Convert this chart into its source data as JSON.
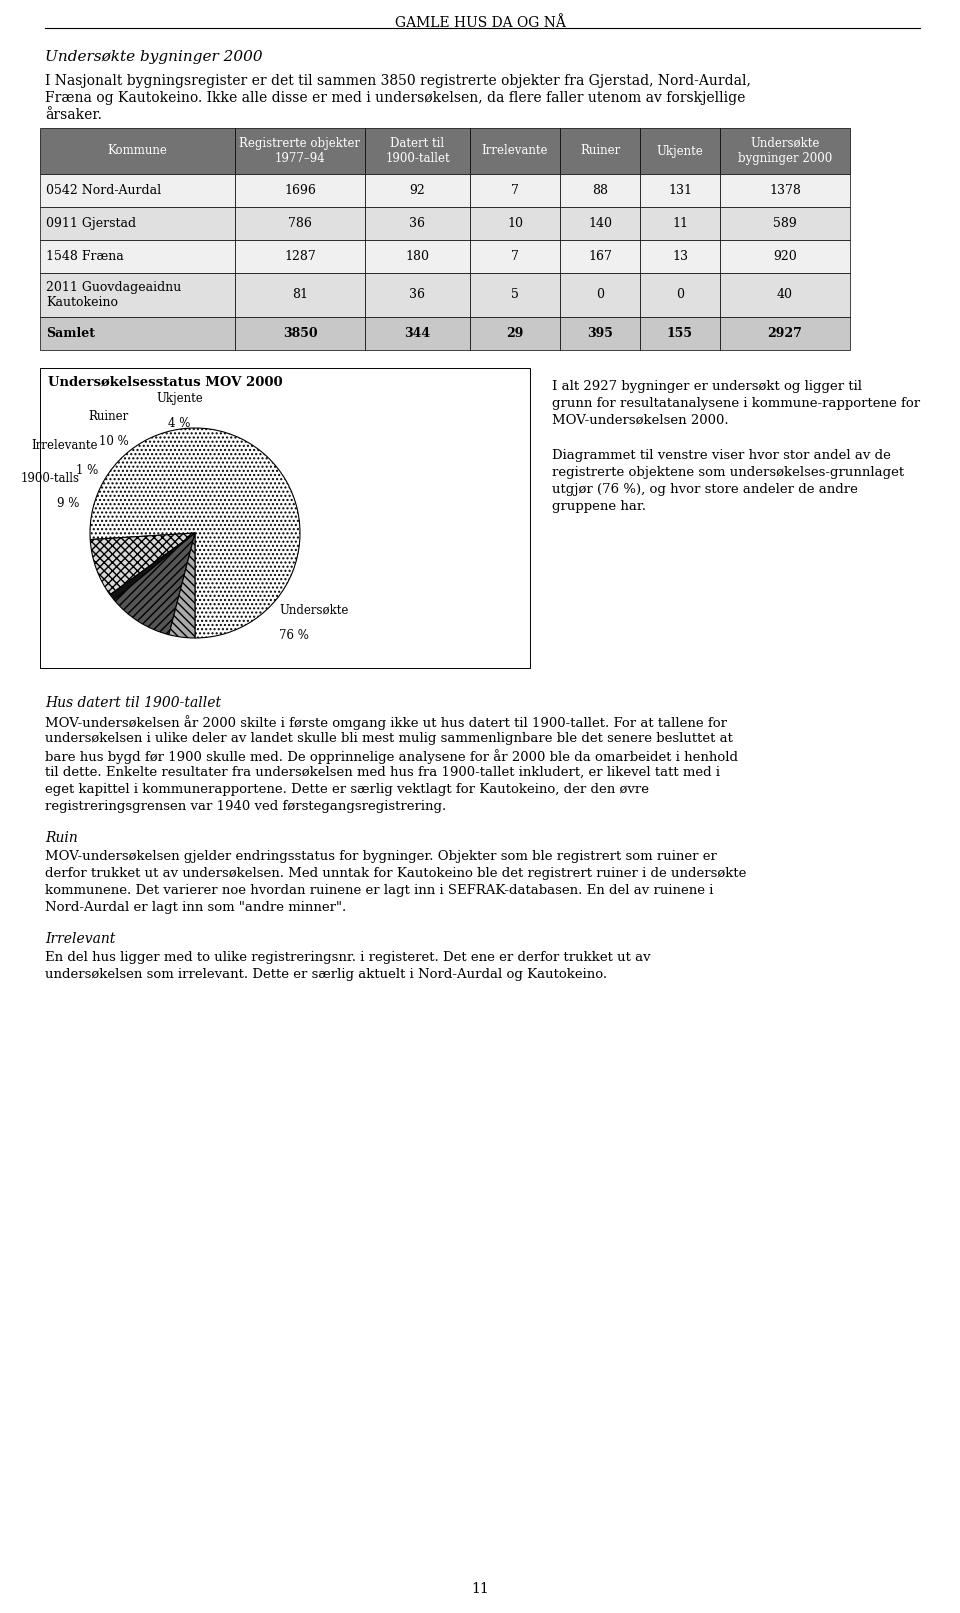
{
  "page_title": "GAMLE HUS DA OG NÅ",
  "section_title": "Undersøkte bygninger 2000",
  "intro_line1": "I Nasjonalt bygningsregister er det til sammen 3850 registrerte objekter fra Gjerstad, Nord-Aurdal,",
  "intro_line2": "Fræna og Kautokeino. Ikke alle disse er med i undersøkelsen, da flere faller utenom av forskjellige",
  "intro_line3": "årsaker.",
  "table_headers": [
    "Kommune",
    "Registrerte objekter\n1977–94",
    "Datert til\n1900-tallet",
    "Irrelevante",
    "Ruiner",
    "Ukjente",
    "Undersøkte\nbygninger 2000"
  ],
  "table_rows": [
    [
      "0542 Nord-Aurdal",
      "1696",
      "92",
      "7",
      "88",
      "131",
      "1378"
    ],
    [
      "0911 Gjerstad",
      "786",
      "36",
      "10",
      "140",
      "11",
      "589"
    ],
    [
      "1548 Fræna",
      "1287",
      "180",
      "7",
      "167",
      "13",
      "920"
    ],
    [
      "2011 Guovdageaidnu\nKautokeino",
      "81",
      "36",
      "5",
      "0",
      "0",
      "40"
    ],
    [
      "Samlet",
      "3850",
      "344",
      "29",
      "395",
      "155",
      "2927"
    ]
  ],
  "pie_title": "Undersøkelsesstatus MOV 2000",
  "pie_values": [
    76,
    9,
    1,
    10,
    4
  ],
  "pie_label_names": [
    "Undersøkte",
    "1900-talls",
    "Irrelevante",
    "Ruiner",
    "Ukjente"
  ],
  "pie_label_pcts": [
    "76 %",
    "9 %",
    "1 %",
    "10 %",
    "4 %"
  ],
  "pie_right_paras": [
    "I alt 2927 bygninger er undersøkt og ligger til grunn for resultatanalysene i kommune-rapportene for MOV-undersøkelsen 2000.",
    "Diagrammet til venstre viser hvor stor andel av de registrerte objektene som undersøkelses-grunnlaget utgjør (76 %), og hvor store andeler de andre gruppene har."
  ],
  "body_sections": [
    {
      "heading": "Hus datert til 1900-tallet",
      "lines": [
        "MOV-undersøkelsen år 2000 skilte i første omgang ikke ut hus datert til 1900-tallet. For at tallene for",
        "undersøkelsen i ulike deler av landet skulle bli mest mulig sammenlignbare ble det senere besluttet at",
        "bare hus bygd før 1900 skulle med. De opprinnelige analysene for år 2000 ble da omarbeidet i henhold",
        "til dette. Enkelte resultater fra undersøkelsen med hus fra 1900-tallet inkludert, er likevel tatt med i",
        "eget kapittel i kommunerapportene. Dette er særlig vektlagt for Kautokeino, der den øvre",
        "registreringsgrensen var 1940 ved førstegangsregistrering."
      ]
    },
    {
      "heading": "Ruin",
      "lines": [
        "MOV-undersøkelsen gjelder endringsstatus for bygninger. Objekter som ble registrert som ruiner er",
        "derfor trukket ut av undersøkelsen. Med unntak for Kautokeino ble det registrert ruiner i de undersøkte",
        "kommunene. Det varierer noe hvordan ruinene er lagt inn i SEFRAK-databasen. En del av ruinene i",
        "Nord-Aurdal er lagt inn som \"andre minner\"."
      ]
    },
    {
      "heading": "Irrelevant",
      "lines": [
        "En del hus ligger med to ulike registreringsnr. i registeret. Det ene er derfor trukket ut av",
        "undersøkelsen som irrelevant. Dette er særlig aktuelt i Nord-Aurdal og Kautokeino."
      ]
    }
  ],
  "page_number": "11"
}
